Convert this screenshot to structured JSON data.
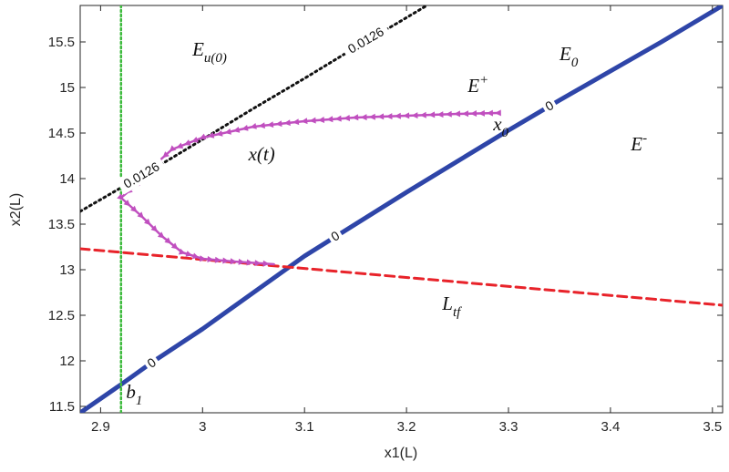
{
  "chart_data": {
    "type": "line",
    "xlabel": "x1(L)",
    "ylabel": "x2(L)",
    "xlim": [
      2.88,
      3.51
    ],
    "ylim": [
      11.43,
      15.9
    ],
    "xticks": [
      "2.9",
      "3",
      "3.1",
      "3.2",
      "3.3",
      "3.4",
      "3.5"
    ],
    "yticks": [
      "11.5",
      "12",
      "12.5",
      "13",
      "13.5",
      "14",
      "14.5",
      "15",
      "15.5"
    ],
    "grid": false,
    "colors": {
      "e0": "#2e45a8",
      "ltf": "#e8232a",
      "eu0": "#111111",
      "b1": "#3cba3c",
      "trajectory": "#c04fbf"
    },
    "series": [
      {
        "key": "e0",
        "points": [
          [
            2.88,
            11.43
          ],
          [
            2.92,
            11.74
          ],
          [
            2.95,
            11.98
          ],
          [
            3.0,
            12.35
          ],
          [
            3.05,
            12.75
          ],
          [
            3.1,
            13.15
          ],
          [
            3.15,
            13.5
          ],
          [
            3.2,
            13.85
          ],
          [
            3.25,
            14.19
          ],
          [
            3.3,
            14.53
          ],
          [
            3.35,
            14.86
          ],
          [
            3.4,
            15.18
          ],
          [
            3.45,
            15.5
          ],
          [
            3.51,
            15.9
          ]
        ],
        "contour_labels": [
          {
            "x": 2.95,
            "y": 11.98,
            "text": "0"
          },
          {
            "x": 3.13,
            "y": 13.37,
            "text": "0"
          },
          {
            "x": 3.34,
            "y": 14.8,
            "text": "0"
          }
        ]
      },
      {
        "key": "ltf",
        "points": [
          [
            2.88,
            13.23
          ],
          [
            3.51,
            12.61
          ]
        ]
      },
      {
        "key": "eu0",
        "points": [
          [
            2.88,
            13.64
          ],
          [
            2.92,
            13.9
          ],
          [
            2.96,
            14.16
          ],
          [
            3.0,
            14.43
          ],
          [
            3.05,
            14.77
          ],
          [
            3.1,
            15.1
          ],
          [
            3.15,
            15.44
          ],
          [
            3.19,
            15.7
          ],
          [
            3.22,
            15.9
          ]
        ],
        "contour_labels": [
          {
            "x": 2.94,
            "y": 14.04,
            "text": "0.0126"
          },
          {
            "x": 3.16,
            "y": 15.52,
            "text": "0.0126"
          }
        ]
      },
      {
        "key": "b1",
        "points": [
          [
            2.92,
            11.43
          ],
          [
            2.92,
            15.9
          ]
        ]
      },
      {
        "key": "trajectory",
        "points": [
          [
            3.29,
            14.72
          ],
          [
            3.25,
            14.71
          ],
          [
            3.2,
            14.69
          ],
          [
            3.15,
            14.67
          ],
          [
            3.1,
            14.63
          ],
          [
            3.05,
            14.57
          ],
          [
            3.0,
            14.45
          ],
          [
            2.97,
            14.32
          ],
          [
            2.95,
            14.12
          ],
          [
            2.935,
            13.93
          ],
          [
            2.92,
            13.79
          ],
          [
            2.94,
            13.59
          ],
          [
            2.96,
            13.37
          ],
          [
            2.98,
            13.19
          ],
          [
            3.0,
            13.12
          ],
          [
            3.03,
            13.09
          ],
          [
            3.07,
            13.06
          ]
        ]
      }
    ],
    "annotations": [
      {
        "x": 2.99,
        "y": 15.35,
        "text": "E",
        "sub": "u(0)"
      },
      {
        "x": 3.26,
        "y": 14.95,
        "text": "E",
        "sup": "+"
      },
      {
        "x": 3.35,
        "y": 15.3,
        "text": "E",
        "sub": "0"
      },
      {
        "x": 3.42,
        "y": 14.31,
        "text": "E",
        "sup": "-"
      },
      {
        "x": 3.045,
        "y": 14.2,
        "text": "x(t)"
      },
      {
        "x": 3.285,
        "y": 14.53,
        "text": "x",
        "sub": "0"
      },
      {
        "x": 3.235,
        "y": 12.56,
        "text": "L",
        "sub": "tf"
      },
      {
        "x": 2.925,
        "y": 11.59,
        "text": "b",
        "sub": "1"
      }
    ]
  }
}
